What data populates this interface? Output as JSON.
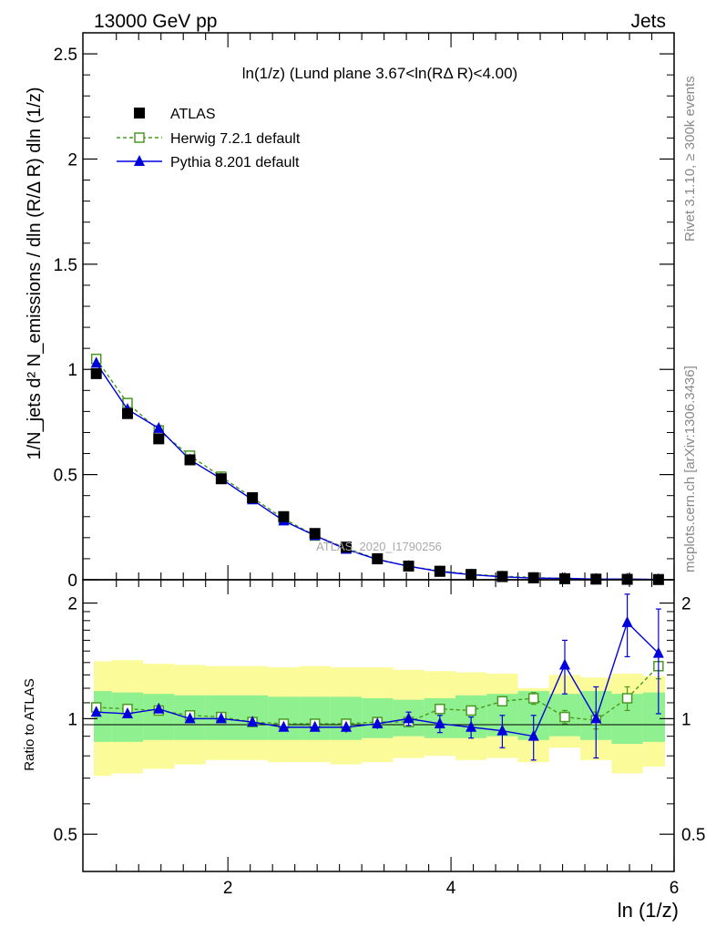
{
  "header": {
    "energy": "13000 GeV pp",
    "process": "Jets"
  },
  "side_labels": {
    "rivet": "Rivet 3.1.10, ≥ 300k events",
    "mcplots": "mcplots.cern.ch [arXiv:1306.3436]"
  },
  "chart_data": [
    {
      "type": "line",
      "title": "ln(1/z) (Lund plane 3.67<ln(RΔ R)<4.00)",
      "watermark": "ATLAS_2020_I1790256",
      "xlabel": "ln (1/z)",
      "ylabel": "1/N_jets d² N_emissions / dln (R/Δ R) dln (1/z)",
      "xlim": [
        0.7,
        6.0
      ],
      "ylim": [
        0,
        2.6
      ],
      "xticks": [
        "2",
        "4",
        "6"
      ],
      "yticks": [
        "0",
        "0.5",
        "1",
        "1.5",
        "2",
        "2.5"
      ],
      "x": [
        0.82,
        1.1,
        1.38,
        1.66,
        1.94,
        2.22,
        2.5,
        2.78,
        3.06,
        3.34,
        3.62,
        3.9,
        4.18,
        4.46,
        4.74,
        5.02,
        5.3,
        5.58,
        5.86
      ],
      "series": [
        {
          "name": "ATLAS",
          "color": "#000000",
          "marker": "square-filled",
          "values": [
            0.98,
            0.79,
            0.67,
            0.57,
            0.48,
            0.39,
            0.3,
            0.22,
            0.155,
            0.1,
            0.065,
            0.04,
            0.025,
            0.015,
            0.009,
            0.005,
            0.003,
            0.002,
            0.001
          ]
        },
        {
          "name": "Herwig 7.2.1 default",
          "color": "#4a9a22",
          "marker": "square-open",
          "dashed": true,
          "values": [
            1.05,
            0.84,
            0.71,
            0.59,
            0.49,
            0.39,
            0.29,
            0.21,
            0.15,
            0.098,
            0.064,
            0.042,
            0.026,
            0.017,
            0.011,
            0.005,
            0.003,
            0.0022,
            0.0014
          ]
        },
        {
          "name": "Pythia 8.201 default",
          "color": "#0000dd",
          "marker": "triangle-filled",
          "values": [
            1.03,
            0.81,
            0.72,
            0.57,
            0.48,
            0.38,
            0.28,
            0.21,
            0.145,
            0.096,
            0.064,
            0.039,
            0.024,
            0.014,
            0.008,
            0.007,
            0.003,
            0.0036,
            0.0015
          ]
        }
      ]
    },
    {
      "type": "line",
      "ylabel": "Ratio to ATLAS",
      "xlim": [
        0.7,
        6.0
      ],
      "ylim": [
        0.4,
        2.3
      ],
      "yticks": [
        "0.5",
        "1",
        "2"
      ],
      "x": [
        0.82,
        1.1,
        1.38,
        1.66,
        1.94,
        2.22,
        2.5,
        2.78,
        3.06,
        3.34,
        3.62,
        3.9,
        4.18,
        4.46,
        4.74,
        5.02,
        5.3,
        5.58,
        5.86
      ],
      "bin_edges": [
        0.68,
        0.96,
        1.24,
        1.52,
        1.8,
        2.08,
        2.36,
        2.64,
        2.92,
        3.2,
        3.48,
        3.76,
        4.04,
        4.32,
        4.6,
        4.88,
        5.16,
        5.44,
        5.72,
        6.0
      ],
      "bands": {
        "inner_color": "#8ff08f",
        "outer_color": "#fbfb9a",
        "inner": [
          [
            0.87,
            1.18
          ],
          [
            0.87,
            1.17
          ],
          [
            0.88,
            1.16
          ],
          [
            0.88,
            1.15
          ],
          [
            0.88,
            1.15
          ],
          [
            0.88,
            1.15
          ],
          [
            0.88,
            1.14
          ],
          [
            0.88,
            1.14
          ],
          [
            0.88,
            1.14
          ],
          [
            0.89,
            1.13
          ],
          [
            0.9,
            1.12
          ],
          [
            0.89,
            1.13
          ],
          [
            0.89,
            1.15
          ],
          [
            0.9,
            1.16
          ],
          [
            0.88,
            1.18
          ],
          [
            0.9,
            1.16
          ],
          [
            0.88,
            1.18
          ],
          [
            0.86,
            1.16
          ],
          [
            0.87,
            1.17
          ]
        ],
        "outer": [
          [
            0.71,
            1.41
          ],
          [
            0.72,
            1.42
          ],
          [
            0.74,
            1.39
          ],
          [
            0.76,
            1.38
          ],
          [
            0.78,
            1.37
          ],
          [
            0.78,
            1.37
          ],
          [
            0.77,
            1.36
          ],
          [
            0.77,
            1.37
          ],
          [
            0.76,
            1.36
          ],
          [
            0.77,
            1.36
          ],
          [
            0.79,
            1.34
          ],
          [
            0.8,
            1.33
          ],
          [
            0.78,
            1.32
          ],
          [
            0.79,
            1.31
          ],
          [
            0.77,
            1.2
          ],
          [
            0.84,
            1.3
          ],
          [
            0.78,
            1.28
          ],
          [
            0.72,
            1.31
          ],
          [
            0.75,
            1.29
          ]
        ]
      },
      "series": [
        {
          "name": "Herwig 7.2.1 default",
          "color": "#4a9a22",
          "marker": "square-open",
          "dashed": true,
          "values": [
            1.07,
            1.06,
            1.05,
            1.02,
            1.01,
            0.98,
            0.97,
            0.97,
            0.97,
            0.98,
            0.98,
            1.06,
            1.05,
            1.11,
            1.13,
            1.01,
            0.99,
            1.13,
            1.37
          ],
          "errors": [
            0.01,
            0.01,
            0.01,
            0.01,
            0.01,
            0.01,
            0.01,
            0.01,
            0.01,
            0.01,
            0.015,
            0.02,
            0.02,
            0.03,
            0.04,
            0.04,
            0.05,
            0.08,
            0.1
          ]
        },
        {
          "name": "Pythia 8.201 default",
          "color": "#0000dd",
          "marker": "triangle-filled",
          "values": [
            1.04,
            1.03,
            1.06,
            1.0,
            1.0,
            0.98,
            0.95,
            0.95,
            0.95,
            0.97,
            1.0,
            0.97,
            0.95,
            0.93,
            0.9,
            1.38,
            1.0,
            1.78,
            1.48
          ],
          "errors": [
            0.02,
            0.02,
            0.02,
            0.02,
            0.02,
            0.02,
            0.02,
            0.02,
            0.03,
            0.03,
            0.04,
            0.05,
            0.06,
            0.09,
            0.12,
            0.22,
            0.21,
            0.33,
            0.45
          ]
        }
      ]
    }
  ]
}
